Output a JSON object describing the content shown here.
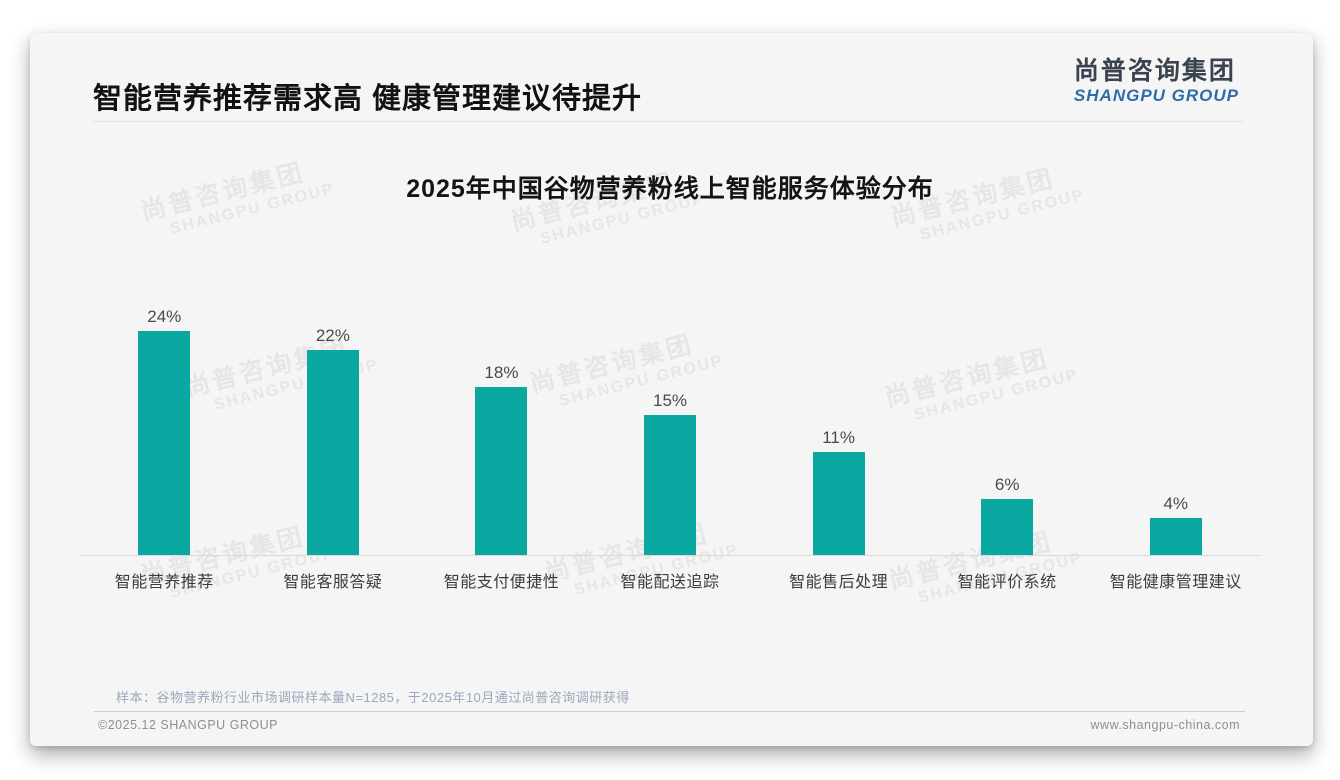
{
  "header": {
    "title": "智能营养推荐需求高 健康管理建议待提升",
    "logo_cn": "尚普咨询集团",
    "logo_en": "SHANGPU GROUP"
  },
  "watermark": {
    "cn": "尚普咨询集团",
    "en": "SHANGPU GROUP"
  },
  "chart_data": {
    "type": "bar",
    "title": "2025年中国谷物营养粉线上智能服务体验分布",
    "categories": [
      "智能营养推荐",
      "智能客服答疑",
      "智能支付便捷性",
      "智能配送追踪",
      "智能售后处理",
      "智能评价系统",
      "智能健康管理建议"
    ],
    "values": [
      24,
      22,
      18,
      15,
      11,
      6,
      4
    ],
    "value_labels": [
      "24%",
      "22%",
      "18%",
      "15%",
      "11%",
      "6%",
      "4%"
    ],
    "unit": "%",
    "ylim": [
      0,
      26
    ],
    "grid": false,
    "legend": "none",
    "bar_color": "#0ba8a1",
    "xlabel": "",
    "ylabel": ""
  },
  "note": "样本：谷物营养粉行业市场调研样本量N=1285，于2025年10月通过尚普咨询调研获得",
  "footer": {
    "left": "©2025.12 SHANGPU GROUP",
    "right": "www.shangpu-china.com"
  },
  "colors": {
    "bar": "#0ba8a1",
    "logo_cn_text": "#3a434f",
    "logo_en_text": "#2f6ca8",
    "note_text": "#9aa7bd",
    "card_background": "#f5f5f5"
  }
}
